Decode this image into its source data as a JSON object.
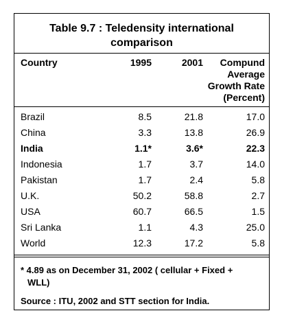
{
  "table": {
    "title_line1": "Table 9.7 : Teledensity international",
    "title_line2": "comparison",
    "headers": {
      "country": "Country",
      "y1995": "1995",
      "y2001": "2001",
      "growth": [
        "Compund",
        "Average",
        "Growth Rate",
        "(Percent)"
      ]
    },
    "rows": [
      {
        "country": "Brazil",
        "y1995": "8.5",
        "y2001": "21.8",
        "growth": "17.0",
        "bold": false
      },
      {
        "country": "China",
        "y1995": "3.3",
        "y2001": "13.8",
        "growth": "26.9",
        "bold": false
      },
      {
        "country": "India",
        "y1995": "1.1*",
        "y2001": "3.6*",
        "growth": "22.3",
        "bold": true
      },
      {
        "country": "Indonesia",
        "y1995": "1.7",
        "y2001": "3.7",
        "growth": "14.0",
        "bold": false
      },
      {
        "country": "Pakistan",
        "y1995": "1.7",
        "y2001": "2.4",
        "growth": "5.8",
        "bold": false
      },
      {
        "country": "U.K.",
        "y1995": "50.2",
        "y2001": "58.8",
        "growth": "2.7",
        "bold": false
      },
      {
        "country": "USA",
        "y1995": "60.7",
        "y2001": "66.5",
        "growth": "1.5",
        "bold": false
      },
      {
        "country": "Sri Lanka",
        "y1995": "1.1",
        "y2001": "4.3",
        "growth": "25.0",
        "bold": false
      },
      {
        "country": "World",
        "y1995": "12.3",
        "y2001": "17.2",
        "growth": "5.8",
        "bold": false
      }
    ],
    "footnote_line1": "* 4.89 as on December 31, 2002 ( cellular + Fixed +",
    "footnote_line2": "WLL)",
    "source": "Source : ITU, 2002 and STT section for India."
  }
}
